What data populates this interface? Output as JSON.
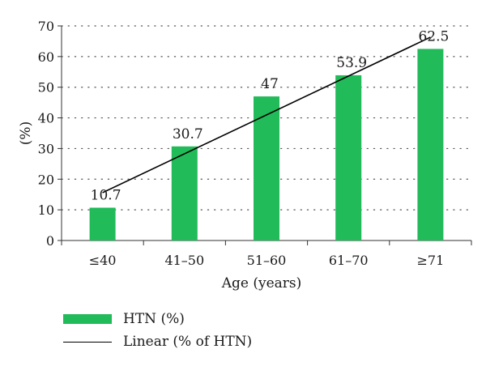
{
  "chart_data": {
    "type": "bar",
    "categories": [
      "≤40",
      "41–50",
      "51–60",
      "61–70",
      "≥71"
    ],
    "series": [
      {
        "name": "HTN (%)",
        "values": [
          10.7,
          30.7,
          47,
          53.9,
          62.5
        ],
        "color": "#22bb5a"
      }
    ],
    "trendline": {
      "name": "Linear (% of HTN)",
      "type": "linear",
      "color": "#000000"
    },
    "data_labels": [
      "10.7",
      "30.7",
      "47",
      "53.9",
      "62.5"
    ],
    "xlabel": "Age (years)",
    "ylabel": "(%)",
    "ylim": [
      0,
      70
    ],
    "yticks": [
      0,
      10,
      20,
      30,
      40,
      50,
      60,
      70
    ],
    "grid": "horizontal-dotted",
    "legend_position": "bottom-left"
  }
}
